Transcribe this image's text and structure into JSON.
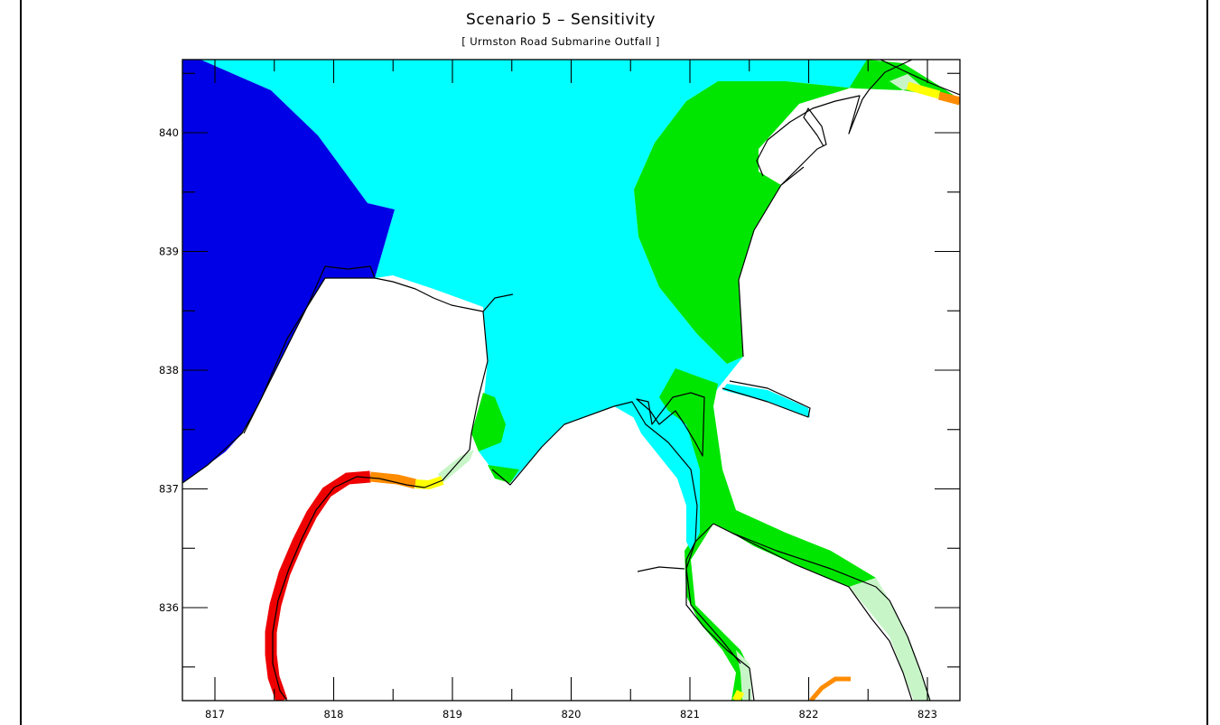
{
  "title": "Scenario 5 – Sensitivity",
  "subtitle": "[ Urmston Road Submarine Outfall ]",
  "x_ticks": [
    "817",
    "818",
    "819",
    "820",
    "821",
    "822",
    "823"
  ],
  "y_ticks": [
    "836",
    "837",
    "838",
    "839",
    "840"
  ],
  "colors": {
    "deep": "#0000e6",
    "cyan": "#00ffff",
    "green": "#00e600",
    "pale_green": "#c8f5c8",
    "yellow": "#ffff00",
    "orange": "#ff8c00",
    "red": "#ee0000"
  }
}
